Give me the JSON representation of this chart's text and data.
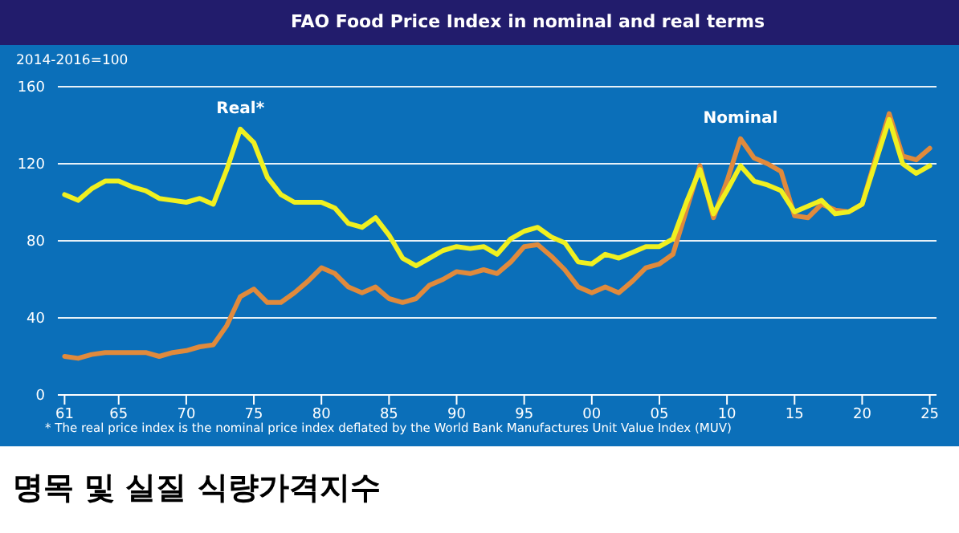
{
  "chart_data": {
    "type": "line",
    "title": "FAO Food Price Index in nominal and real terms",
    "ylabel": "2014-2016=100",
    "annotations": [
      "* The real price index is the nominal price index deflated by the World Bank Manufactures Unit Value Index (MUV)",
      "명목 및 실질 식량가격지수"
    ],
    "x": [
      1961,
      1962,
      1963,
      1964,
      1965,
      1966,
      1967,
      1968,
      1969,
      1970,
      1971,
      1972,
      1973,
      1974,
      1975,
      1976,
      1977,
      1978,
      1979,
      1980,
      1981,
      1982,
      1983,
      1984,
      1985,
      1986,
      1987,
      1988,
      1989,
      1990,
      1991,
      1992,
      1993,
      1994,
      1995,
      1996,
      1997,
      1998,
      1999,
      2000,
      2001,
      2002,
      2003,
      2004,
      2005,
      2006,
      2007,
      2008,
      2009,
      2010,
      2011,
      2012,
      2013,
      2014,
      2015,
      2016,
      2017,
      2018,
      2019,
      2020,
      2021,
      2022,
      2023,
      2024,
      2025
    ],
    "series": [
      {
        "name": "Nominal",
        "color": "#e08a3c",
        "values": [
          20,
          19,
          21,
          22,
          22,
          22,
          22,
          20,
          22,
          23,
          25,
          26,
          36,
          51,
          55,
          48,
          48,
          53,
          59,
          66,
          63,
          56,
          53,
          56,
          50,
          48,
          50,
          57,
          60,
          64,
          63,
          65,
          63,
          69,
          77,
          78,
          72,
          65,
          56,
          53,
          56,
          53,
          59,
          66,
          68,
          73,
          96,
          119,
          92,
          111,
          133,
          123,
          120,
          116,
          93,
          92,
          99,
          96,
          95,
          99,
          123,
          146,
          124,
          122,
          128
        ]
      },
      {
        "name": "Real*",
        "color": "#f0f020",
        "values": [
          104,
          101,
          107,
          111,
          111,
          108,
          106,
          102,
          101,
          100,
          102,
          99,
          117,
          138,
          131,
          113,
          104,
          100,
          100,
          100,
          97,
          89,
          87,
          92,
          83,
          71,
          67,
          71,
          75,
          77,
          76,
          77,
          73,
          81,
          85,
          87,
          82,
          79,
          69,
          68,
          73,
          71,
          74,
          77,
          77,
          81,
          100,
          117,
          94,
          106,
          119,
          111,
          109,
          106,
          95,
          98,
          101,
          94,
          95,
          99,
          121,
          143,
          120,
          115,
          119
        ]
      }
    ],
    "xlim": [
      1960.5,
      2025.5
    ],
    "xticks": [
      {
        "value": 1961,
        "label": "61"
      },
      {
        "value": 1965,
        "label": "65"
      },
      {
        "value": 1970,
        "label": "70"
      },
      {
        "value": 1975,
        "label": "75"
      },
      {
        "value": 1980,
        "label": "80"
      },
      {
        "value": 1985,
        "label": "85"
      },
      {
        "value": 1990,
        "label": "90"
      },
      {
        "value": 1995,
        "label": "95"
      },
      {
        "value": 2000,
        "label": "00"
      },
      {
        "value": 2005,
        "label": "05"
      },
      {
        "value": 2010,
        "label": "10"
      },
      {
        "value": 2015,
        "label": "15"
      },
      {
        "value": 2020,
        "label": "20"
      },
      {
        "value": 2025,
        "label": "25"
      }
    ],
    "ylim": [
      0,
      160
    ],
    "yticks": [
      0,
      40,
      80,
      120,
      160
    ],
    "grid": "y",
    "legend": false,
    "marker": "none",
    "line_style": "solid"
  }
}
